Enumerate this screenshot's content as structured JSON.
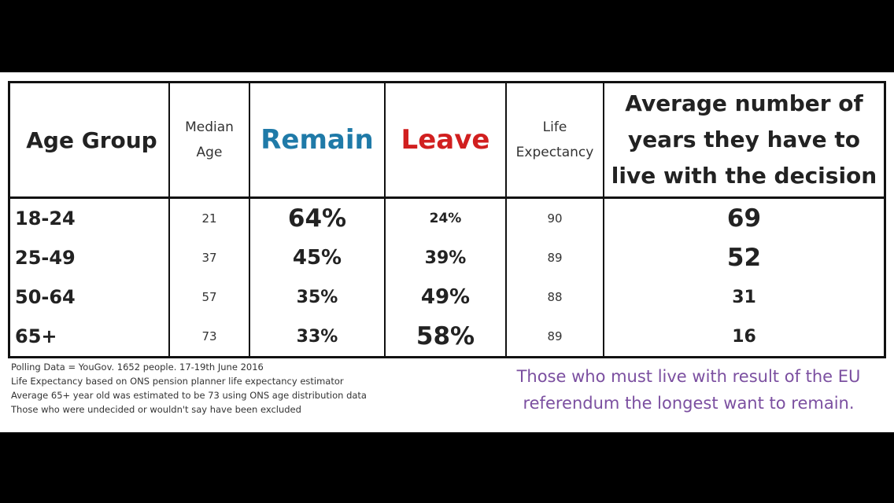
{
  "headers": {
    "age_group": "Age Group",
    "median_age": "Median Age",
    "remain": "Remain",
    "leave": "Leave",
    "life_expectancy": "Life Expectancy",
    "average_years": "Average number of years they have to live with the decision"
  },
  "colors": {
    "remain": "#1f7aa8",
    "leave": "#d11f1f",
    "message": "#7b4fa0"
  },
  "rows": [
    {
      "age_group": "18-24",
      "median_age": "21",
      "remain": "64%",
      "leave": "24%",
      "life_expectancy": "90",
      "years": "69"
    },
    {
      "age_group": "25-49",
      "median_age": "37",
      "remain": "45%",
      "leave": "39%",
      "life_expectancy": "89",
      "years": "52"
    },
    {
      "age_group": "50-64",
      "median_age": "57",
      "remain": "35%",
      "leave": "49%",
      "life_expectancy": "88",
      "years": "31"
    },
    {
      "age_group": "65+",
      "median_age": "73",
      "remain": "33%",
      "leave": "58%",
      "life_expectancy": "89",
      "years": "16"
    }
  ],
  "notes": [
    "Polling Data = YouGov. 1652 people. 17-19th June 2016",
    "Life Expectancy based on ONS pension planner life expectancy estimator",
    "Average 65+ year old was estimated to be 73 using ONS age distribution data",
    "Those who were undecided or wouldn't say have been excluded"
  ],
  "message": "Those who must live with result of the EU referendum the longest want to remain."
}
